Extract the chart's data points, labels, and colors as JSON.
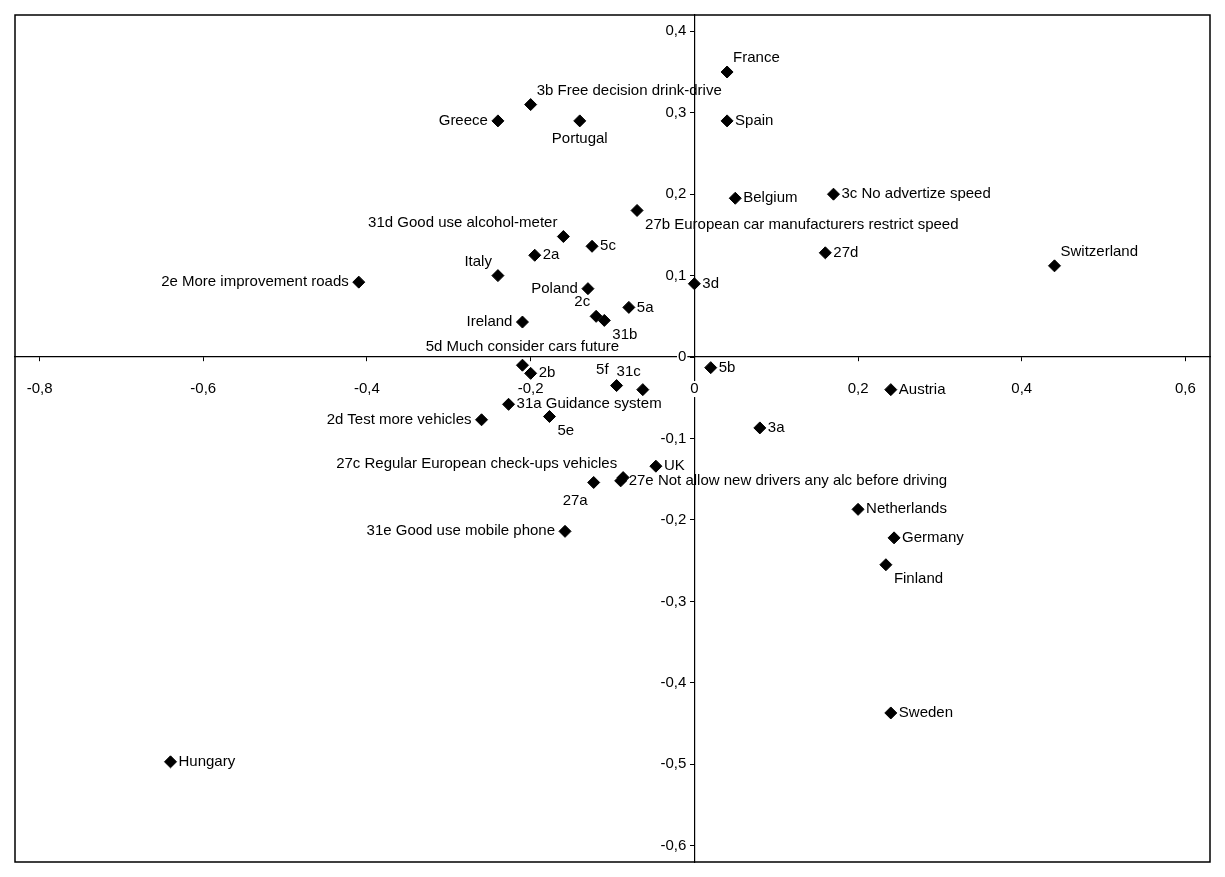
{
  "chart_data": {
    "type": "scatter",
    "marker": "diamond",
    "grid": false,
    "legend": false,
    "xlim": [
      -0.83,
      0.63
    ],
    "ylim": [
      -0.62,
      0.42
    ],
    "xticks": [
      {
        "value": -0.8,
        "label": "-0,8"
      },
      {
        "value": -0.6,
        "label": "-0,6"
      },
      {
        "value": -0.4,
        "label": "-0,4"
      },
      {
        "value": -0.2,
        "label": "-0,2"
      },
      0,
      {
        "value": 0.2,
        "label": "0,2"
      },
      {
        "value": 0.4,
        "label": "0,4"
      },
      {
        "value": 0.6,
        "label": "0,6"
      }
    ],
    "yticks": [
      {
        "value": -0.6,
        "label": "-0,6"
      },
      {
        "value": -0.5,
        "label": "-0,5"
      },
      {
        "value": -0.4,
        "label": "-0,4"
      },
      {
        "value": -0.3,
        "label": "-0,3"
      },
      {
        "value": -0.2,
        "label": "-0,2"
      },
      {
        "value": -0.1,
        "label": "-0,1"
      },
      0,
      {
        "value": 0.1,
        "label": "0,1"
      },
      {
        "value": 0.2,
        "label": "0,2"
      },
      {
        "value": 0.3,
        "label": "0,3"
      },
      {
        "value": 0.4,
        "label": "0,4"
      }
    ],
    "series": [
      {
        "color": "#000000",
        "x": [
          0.04,
          -0.2,
          -0.24,
          -0.14,
          0.04,
          0.05,
          0.17,
          -0.07,
          -0.16,
          -0.125,
          -0.195,
          0.16,
          0.44,
          -0.24,
          -0.41,
          -0.13,
          0.0,
          -0.08,
          -0.12,
          -0.11,
          -0.21,
          -0.21,
          -0.2,
          0.02,
          -0.095,
          -0.063,
          -0.227,
          -0.26,
          -0.177,
          0.08,
          0.24,
          -0.047,
          -0.09,
          -0.087,
          -0.123,
          -0.158,
          0.2,
          0.244,
          0.234,
          0.24,
          -0.64
        ],
        "values": [
          0.35,
          0.31,
          0.29,
          0.29,
          0.29,
          0.195,
          0.2,
          0.18,
          0.148,
          0.136,
          0.125,
          0.128,
          0.112,
          0.1,
          0.092,
          0.084,
          0.09,
          0.061,
          0.05,
          0.045,
          0.043,
          -0.01,
          -0.02,
          -0.013,
          -0.035,
          -0.04,
          -0.058,
          -0.077,
          -0.073,
          -0.087,
          -0.04,
          -0.134,
          -0.152,
          -0.148,
          -0.154,
          -0.214,
          -0.187,
          -0.222,
          -0.255,
          -0.437,
          -0.497
        ]
      }
    ],
    "annotations": [
      {
        "text": "France",
        "x": 0.04,
        "y": 0.35
      },
      {
        "text": "3b Free decision drink-drive",
        "x": -0.2,
        "y": 0.31
      },
      {
        "text": "Greece",
        "x": -0.24,
        "y": 0.29
      },
      {
        "text": "Portugal",
        "x": -0.14,
        "y": 0.29
      },
      {
        "text": "Spain",
        "x": 0.04,
        "y": 0.29
      },
      {
        "text": "Belgium",
        "x": 0.05,
        "y": 0.195
      },
      {
        "text": "3c No advertize speed",
        "x": 0.17,
        "y": 0.2
      },
      {
        "text": "27b European car manufacturers restrict speed",
        "x": -0.07,
        "y": 0.18
      },
      {
        "text": "31d Good use alcohol-meter",
        "x": -0.16,
        "y": 0.148
      },
      {
        "text": "5c",
        "x": -0.125,
        "y": 0.136
      },
      {
        "text": "2a",
        "x": -0.195,
        "y": 0.125
      },
      {
        "text": "27d",
        "x": 0.16,
        "y": 0.128
      },
      {
        "text": "Switzerland",
        "x": 0.44,
        "y": 0.112
      },
      {
        "text": "Italy",
        "x": -0.24,
        "y": 0.1
      },
      {
        "text": "2e More improvement roads",
        "x": -0.41,
        "y": 0.092
      },
      {
        "text": "Poland",
        "x": -0.13,
        "y": 0.084
      },
      {
        "text": "3d",
        "x": 0.0,
        "y": 0.09
      },
      {
        "text": "5a",
        "x": -0.08,
        "y": 0.061
      },
      {
        "text": "2c",
        "x": -0.12,
        "y": 0.05
      },
      {
        "text": "31b",
        "x": -0.11,
        "y": 0.045
      },
      {
        "text": "Ireland",
        "x": -0.21,
        "y": 0.043
      },
      {
        "text": "5d Much consider cars future",
        "x": -0.21,
        "y": -0.01
      },
      {
        "text": "2b",
        "x": -0.2,
        "y": -0.02
      },
      {
        "text": "5b",
        "x": 0.02,
        "y": -0.013
      },
      {
        "text": "5f",
        "x": -0.095,
        "y": -0.035
      },
      {
        "text": "31c",
        "x": -0.063,
        "y": -0.04
      },
      {
        "text": "31a Guidance system",
        "x": -0.227,
        "y": -0.058
      },
      {
        "text": "2d Test more vehicles",
        "x": -0.26,
        "y": -0.077
      },
      {
        "text": "5e",
        "x": -0.177,
        "y": -0.073
      },
      {
        "text": "3a",
        "x": 0.08,
        "y": -0.087
      },
      {
        "text": "Austria",
        "x": 0.24,
        "y": -0.04
      },
      {
        "text": "UK",
        "x": -0.047,
        "y": -0.134
      },
      {
        "text": "27e Not allow new drivers any alc before driving",
        "x": -0.09,
        "y": -0.152
      },
      {
        "text": "27c Regular European check-ups vehicles",
        "x": -0.087,
        "y": -0.148
      },
      {
        "text": "27a",
        "x": -0.123,
        "y": -0.154
      },
      {
        "text": "31e Good use mobile phone",
        "x": -0.158,
        "y": -0.214
      },
      {
        "text": "Netherlands",
        "x": 0.2,
        "y": -0.187
      },
      {
        "text": "Germany",
        "x": 0.244,
        "y": -0.222
      },
      {
        "text": "Finland",
        "x": 0.234,
        "y": -0.255
      },
      {
        "text": "Sweden",
        "x": 0.24,
        "y": -0.437
      },
      {
        "text": "Hungary",
        "x": -0.64,
        "y": -0.497
      }
    ]
  }
}
